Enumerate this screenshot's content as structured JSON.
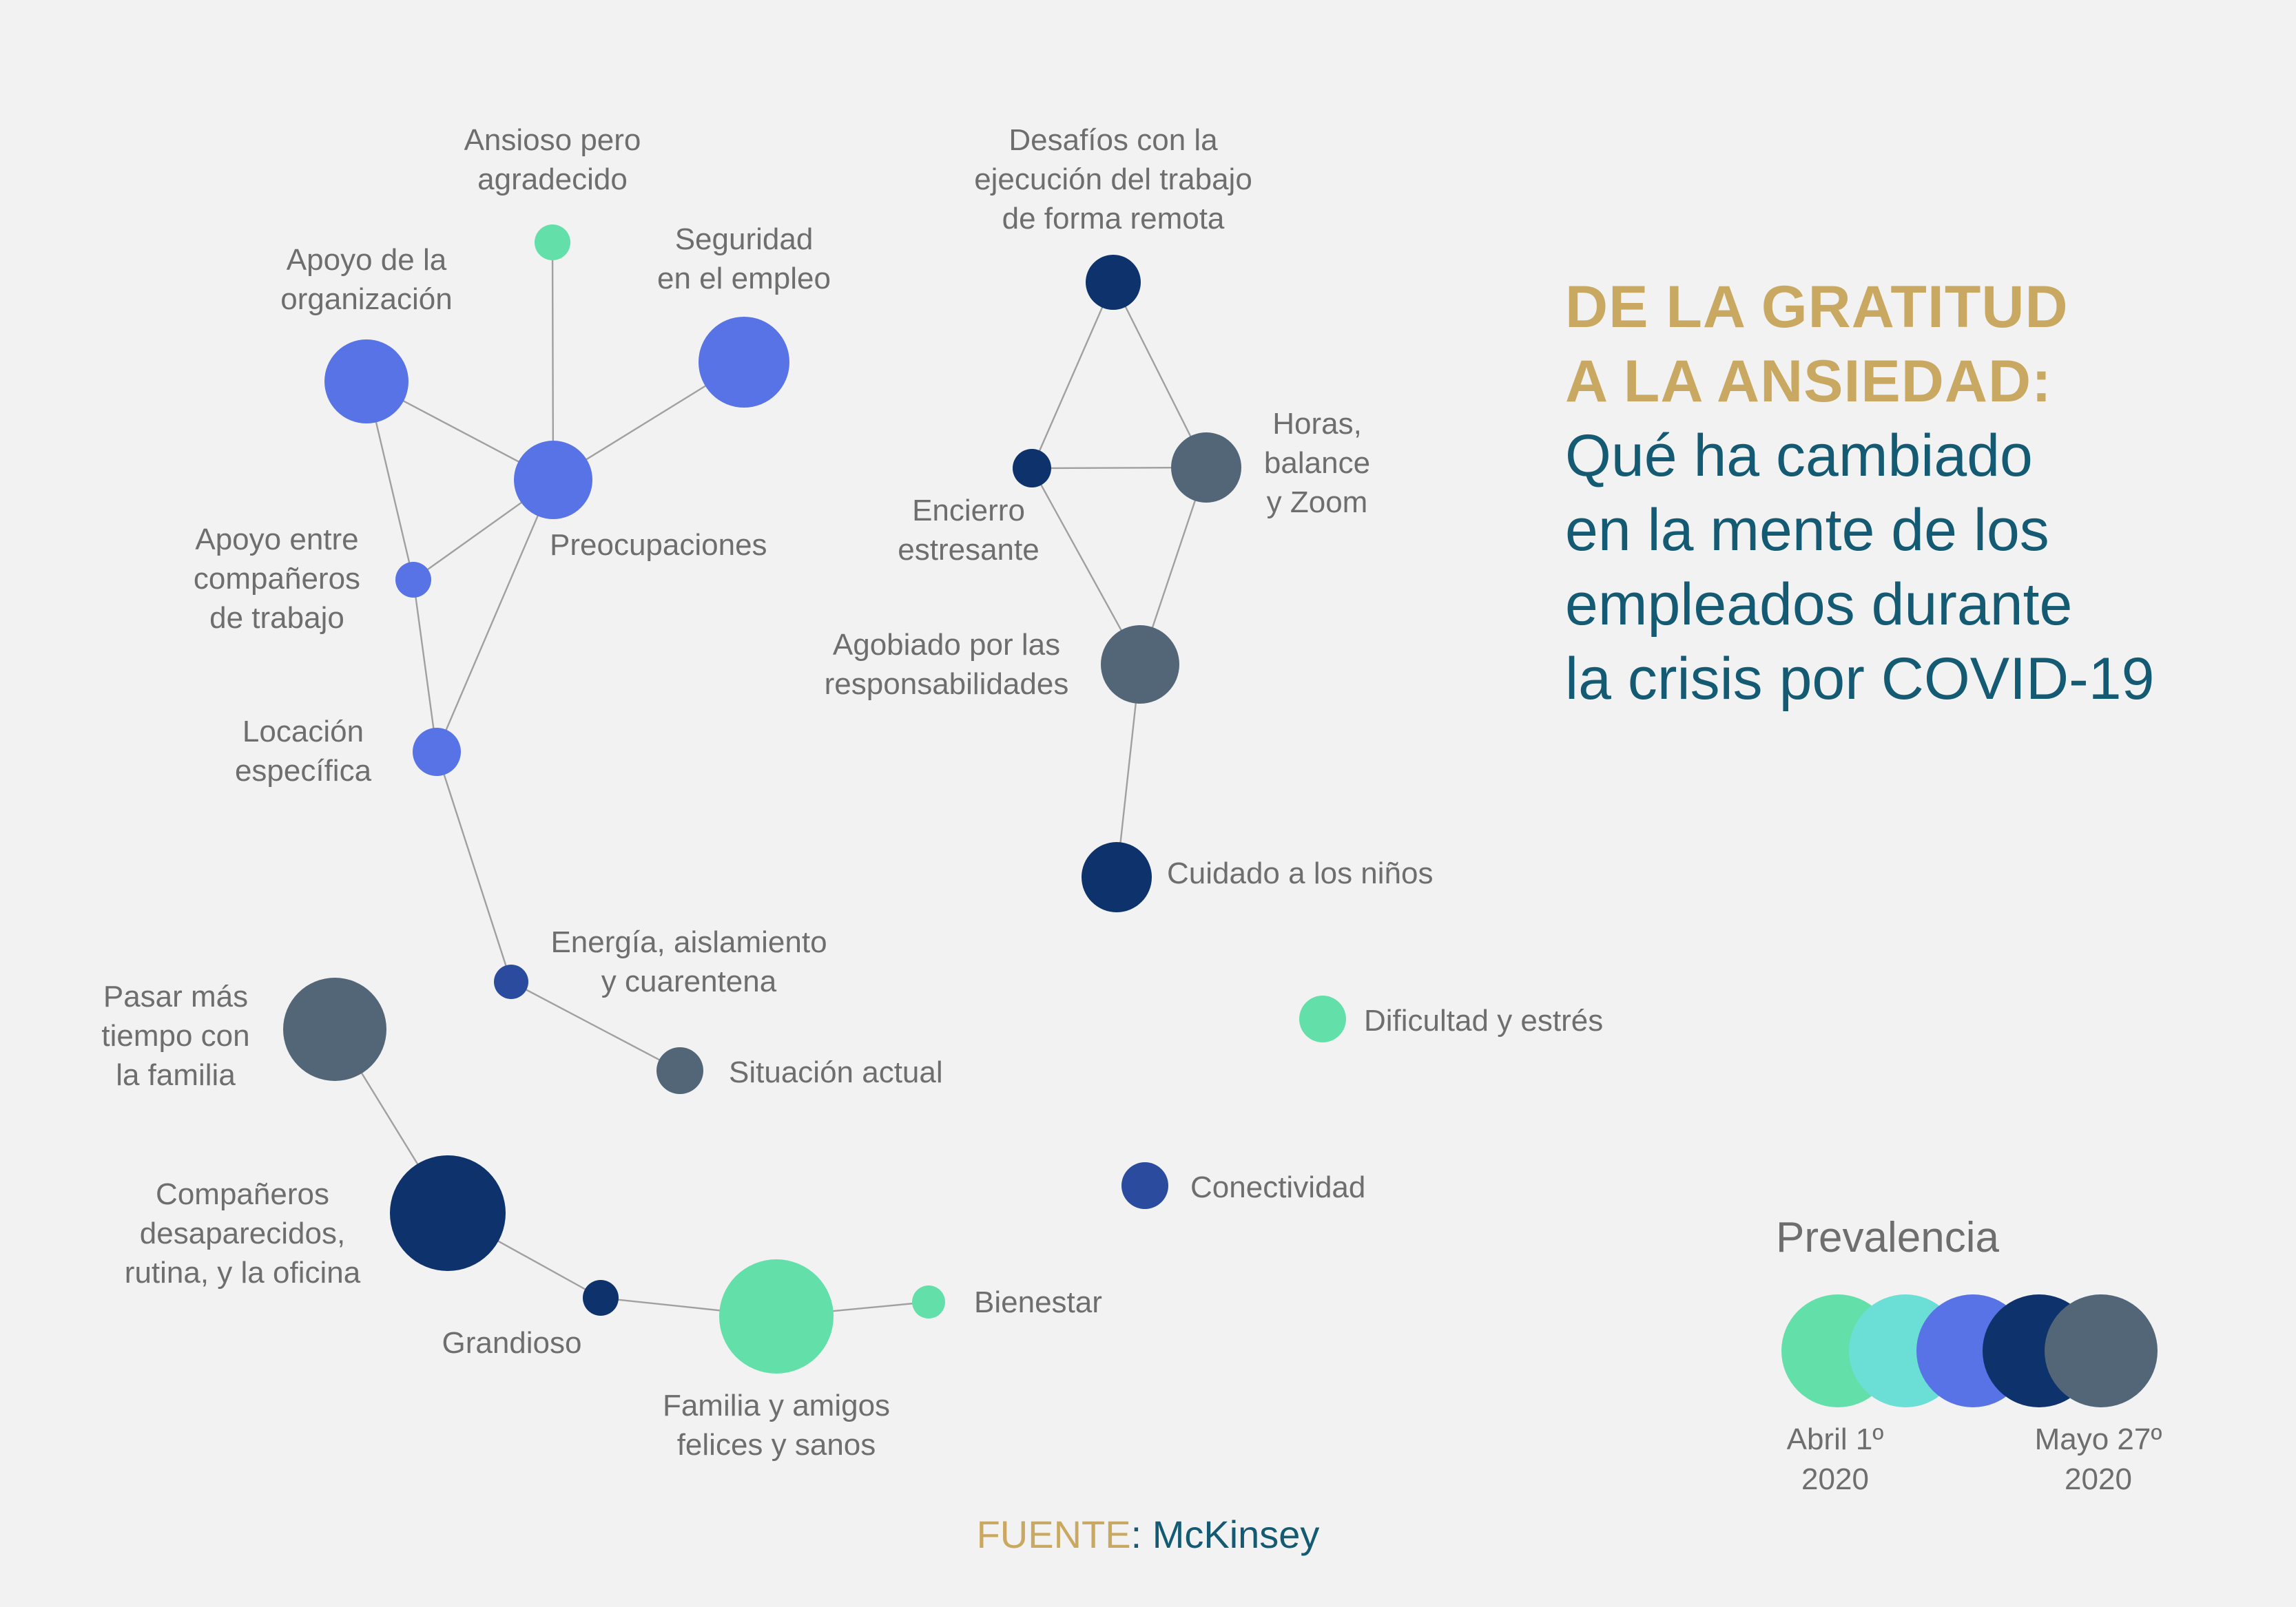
{
  "title": {
    "line1": "DE LA GRATITUD",
    "line2": "A LA ANSIEDAD:",
    "subtitle": [
      "Qué ha cambiado",
      "en la mente de los",
      "empleados durante",
      "la crisis por COVID-19"
    ]
  },
  "colors": {
    "light_green": "#63e0a9",
    "cyan": "#6bded5",
    "blue": "#5773e6",
    "navy": "#0d326c",
    "slate": "#536678",
    "royal": "#2b4c9e",
    "gold": "#c9a961",
    "teal": "#155a73"
  },
  "nodes": [
    {
      "id": "ansioso",
      "label": [
        "Ansioso pero",
        "agradecido"
      ],
      "color": "light_green"
    },
    {
      "id": "apoyo_org",
      "label": [
        "Apoyo de la",
        "organización"
      ],
      "color": "blue"
    },
    {
      "id": "seguridad",
      "label": [
        "Seguridad",
        "en el empleo"
      ],
      "color": "blue"
    },
    {
      "id": "preocupaciones",
      "label": [
        "Preocupaciones"
      ],
      "color": "blue"
    },
    {
      "id": "apoyo_comp",
      "label": [
        "Apoyo entre",
        "compañeros",
        "de trabajo"
      ],
      "color": "blue"
    },
    {
      "id": "locacion",
      "label": [
        "Locación",
        "específica"
      ],
      "color": "blue"
    },
    {
      "id": "energia",
      "label": [
        "Energía, aislamiento",
        "y cuarentena"
      ],
      "color": "royal"
    },
    {
      "id": "situacion",
      "label": [
        "Situación actual"
      ],
      "color": "slate"
    },
    {
      "id": "pasar",
      "label": [
        "Pasar más",
        "tiempo con",
        "la familia"
      ],
      "color": "slate"
    },
    {
      "id": "companeros",
      "label": [
        "Compañeros",
        "desaparecidos,",
        "rutina, y la oficina"
      ],
      "color": "navy"
    },
    {
      "id": "grandioso",
      "label": [
        "Grandioso"
      ],
      "color": "navy"
    },
    {
      "id": "familia",
      "label": [
        "Familia y amigos",
        "felices y sanos"
      ],
      "color": "light_green"
    },
    {
      "id": "bienestar",
      "label": [
        "Bienestar"
      ],
      "color": "light_green"
    },
    {
      "id": "desafios",
      "label": [
        "Desafíos con la",
        "ejecución del trabajo",
        "de forma remota"
      ],
      "color": "navy"
    },
    {
      "id": "encierro",
      "label": [
        "Encierro",
        "estresante"
      ],
      "color": "navy"
    },
    {
      "id": "horas",
      "label": [
        "Horas,",
        "balance",
        "y Zoom"
      ],
      "color": "slate"
    },
    {
      "id": "agobiado",
      "label": [
        "Agobiado por las",
        "responsabilidades"
      ],
      "color": "slate"
    },
    {
      "id": "cuidado",
      "label": [
        "Cuidado a los niños"
      ],
      "color": "navy"
    },
    {
      "id": "dificultad",
      "label": [
        "Dificultad y estrés"
      ],
      "color": "light_green"
    },
    {
      "id": "conectividad",
      "label": [
        "Conectividad"
      ],
      "color": "royal"
    }
  ],
  "edges": [
    [
      "ansioso",
      "preocupaciones"
    ],
    [
      "apoyo_org",
      "preocupaciones"
    ],
    [
      "seguridad",
      "preocupaciones"
    ],
    [
      "preocupaciones",
      "apoyo_comp"
    ],
    [
      "preocupaciones",
      "locacion"
    ],
    [
      "apoyo_org",
      "apoyo_comp"
    ],
    [
      "apoyo_comp",
      "locacion"
    ],
    [
      "locacion",
      "energia"
    ],
    [
      "energia",
      "situacion"
    ],
    [
      "pasar",
      "companeros"
    ],
    [
      "companeros",
      "grandioso"
    ],
    [
      "grandioso",
      "familia"
    ],
    [
      "familia",
      "bienestar"
    ],
    [
      "desafios",
      "encierro"
    ],
    [
      "desafios",
      "horas"
    ],
    [
      "encierro",
      "horas"
    ],
    [
      "encierro",
      "agobiado"
    ],
    [
      "horas",
      "agobiado"
    ],
    [
      "agobiado",
      "cuidado"
    ]
  ],
  "legend": {
    "title": "Prevalencia",
    "colors": [
      "light_green",
      "cyan",
      "blue",
      "navy",
      "slate"
    ],
    "start": [
      "Abril 1º",
      "2020"
    ],
    "end": [
      "Mayo 27º",
      "2020"
    ]
  },
  "source": {
    "label": "FUENTE",
    "value": "McKinsey"
  }
}
